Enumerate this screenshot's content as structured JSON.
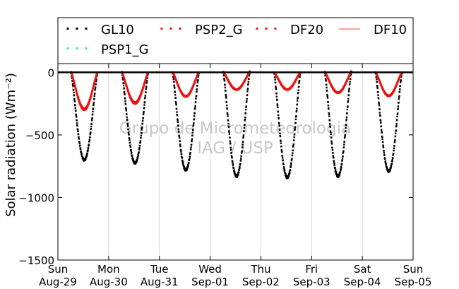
{
  "chart_data": {
    "type": "line",
    "ylabel": "Solar radiation (Wm⁻²)",
    "ylim": [
      -1500,
      70
    ],
    "yticks": [
      0,
      -500,
      -1000,
      -1500
    ],
    "ytick_labels": [
      "0",
      "−500",
      "−1000",
      "−1500"
    ],
    "xlim": [
      0,
      7
    ],
    "xticks": [
      0,
      1,
      2,
      3,
      4,
      5,
      6,
      7
    ],
    "xtick_labels": [
      {
        "day": "Sun",
        "date": "Aug-29"
      },
      {
        "day": "Mon",
        "date": "Aug-30"
      },
      {
        "day": "Tue",
        "date": "Aug-31"
      },
      {
        "day": "Wed",
        "date": "Sep-01"
      },
      {
        "day": "Thu",
        "date": "Sep-02"
      },
      {
        "day": "Fri",
        "date": "Sep-03"
      },
      {
        "day": "Sat",
        "date": "Sep-04"
      },
      {
        "day": "Sun",
        "date": "Sep-05"
      }
    ],
    "grid": "vertical",
    "legend_position": "top",
    "watermark": [
      "Grupo de Micrometeorologia",
      "IAG / USP"
    ],
    "series": [
      {
        "name": "GL10",
        "color": "#000000",
        "style": "dotted",
        "daily_peak": [
          -700,
          -725,
          -780,
          -830,
          -840,
          -830,
          -790
        ],
        "peak_time": [
          0.52,
          0.52,
          0.52,
          0.52,
          0.52,
          0.52,
          0.52
        ]
      },
      {
        "name": "PSP2_G",
        "color": "#ee1111",
        "style": "dotted",
        "daily_peak": [
          -300,
          -250,
          -195,
          -140,
          -140,
          -165,
          -190
        ],
        "peak_time": [
          0.52,
          0.52,
          0.52,
          0.52,
          0.52,
          0.52,
          0.52
        ]
      },
      {
        "name": "DF20",
        "color": "#ee1111",
        "style": "dotted",
        "daily_peak": [
          -290,
          -240,
          -190,
          -135,
          -135,
          -160,
          -185
        ],
        "peak_time": [
          0.52,
          0.52,
          0.52,
          0.52,
          0.52,
          0.52,
          0.52
        ]
      },
      {
        "name": "DF10",
        "color": "#ff6666",
        "style": "solid",
        "daily_peak": [
          0,
          0,
          0,
          0,
          0,
          0,
          0
        ]
      },
      {
        "name": "PSP1_G",
        "color": "#40e0d0",
        "style": "dotted",
        "daily_peak": [
          0,
          0,
          0,
          0,
          0,
          0,
          0
        ]
      }
    ],
    "legend_layout": [
      [
        "GL10",
        "PSP2_G",
        "DF20",
        "DF10"
      ],
      [
        "PSP1_G"
      ]
    ]
  }
}
